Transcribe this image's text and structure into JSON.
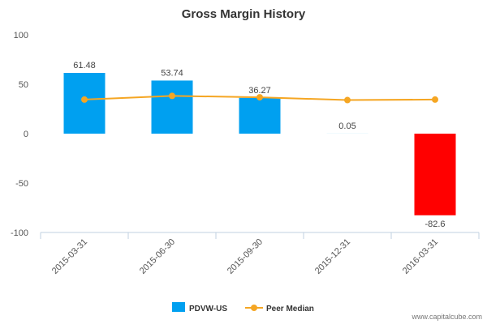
{
  "colors": {
    "bar_positive": "#00a0f0",
    "bar_negative": "#ff0000",
    "peer_line": "#f5a623",
    "axis": "#c0d0e0"
  },
  "chart_data": {
    "type": "bar",
    "title": "Gross Margin History",
    "xlabel": "",
    "ylabel": "",
    "categories": [
      "2015-03-31",
      "2015-06-30",
      "2015-09-30",
      "2015-12-31",
      "2016-03-31"
    ],
    "ylim": [
      -100,
      100
    ],
    "yticks": [
      100,
      50,
      0,
      -50,
      -100
    ],
    "grid": false,
    "legend_position": "bottom",
    "series": [
      {
        "name": "PDVW-US",
        "kind": "bar",
        "values": [
          61.48,
          53.74,
          36.27,
          0.05,
          -82.6
        ],
        "labels": [
          "61.48",
          "53.74",
          "36.27",
          "0.05",
          "-82.6"
        ]
      },
      {
        "name": "Peer Median",
        "kind": "line",
        "values": [
          34.5,
          38.2,
          36.8,
          34.0,
          34.5
        ]
      }
    ]
  },
  "footer": {
    "credit": "www.capitalcube.com"
  }
}
